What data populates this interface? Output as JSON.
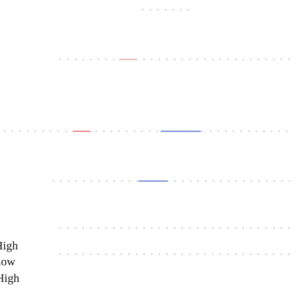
{
  "labels": [
    "High",
    "Low",
    "High"
  ]
}
